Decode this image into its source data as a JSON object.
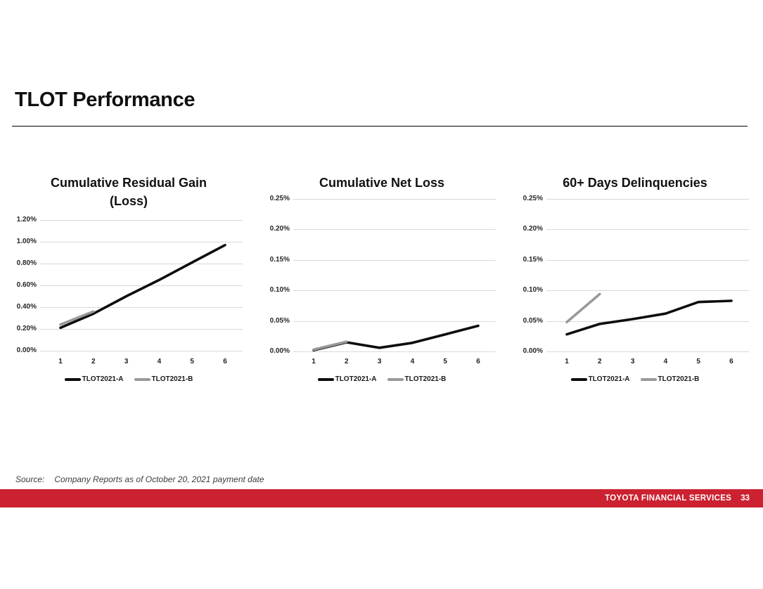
{
  "slide": {
    "title": "TLOT Performance",
    "source": {
      "label": "Source:",
      "text": "Company Reports as of October 20, 2021 payment date"
    },
    "footer": {
      "brand": "TOYOTA FINANCIAL SERVICES",
      "page_number": "33",
      "bar_color": "#cb2130",
      "text_color": "#ffffff"
    },
    "colors": {
      "gridline": "#d9d9d9",
      "series_a": "#0d0d0d",
      "series_b": "#999999"
    }
  },
  "chart_data": [
    {
      "type": "line",
      "title": "Cumulative Residual Gain\n(Loss)",
      "xlabel": "",
      "ylabel": "",
      "categories": [
        "1",
        "2",
        "3",
        "4",
        "5",
        "6"
      ],
      "series": [
        {
          "name": "TLOT2021-A",
          "color": "#0d0d0d",
          "values": [
            0.21,
            0.34,
            0.5,
            0.65,
            0.81,
            0.97
          ]
        },
        {
          "name": "TLOT2021-B",
          "color": "#999999",
          "values": [
            0.24,
            0.36
          ]
        }
      ],
      "ylim": [
        0,
        1.2
      ],
      "yticks": [
        "1.20%",
        "1.00%",
        "0.80%",
        "0.60%",
        "0.40%",
        "0.20%",
        "0.00%"
      ],
      "ytick_values": [
        1.2,
        1.0,
        0.8,
        0.6,
        0.4,
        0.2,
        0
      ],
      "unit": "percent",
      "grid": true,
      "legend_position": "bottom"
    },
    {
      "type": "line",
      "title": "Cumulative Net Loss",
      "xlabel": "",
      "ylabel": "",
      "categories": [
        "1",
        "2",
        "3",
        "4",
        "5",
        "6"
      ],
      "series": [
        {
          "name": "TLOT2021-A",
          "color": "#0d0d0d",
          "values": [
            0.002,
            0.015,
            0.006,
            0.014,
            0.028,
            0.042
          ]
        },
        {
          "name": "TLOT2021-B",
          "color": "#999999",
          "values": [
            0.003,
            0.016
          ]
        }
      ],
      "ylim": [
        0,
        0.25
      ],
      "yticks": [
        "0.25%",
        "0.20%",
        "0.15%",
        "0.10%",
        "0.05%",
        "0.00%"
      ],
      "ytick_values": [
        0.25,
        0.2,
        0.15,
        0.1,
        0.05,
        0
      ],
      "unit": "percent",
      "grid": true,
      "legend_position": "bottom"
    },
    {
      "type": "line",
      "title": "60+ Days Delinquencies",
      "xlabel": "",
      "ylabel": "",
      "categories": [
        "1",
        "2",
        "3",
        "4",
        "5",
        "6"
      ],
      "series": [
        {
          "name": "TLOT2021-A",
          "color": "#0d0d0d",
          "values": [
            0.028,
            0.045,
            0.053,
            0.062,
            0.081,
            0.083
          ]
        },
        {
          "name": "TLOT2021-B",
          "color": "#999999",
          "values": [
            0.048,
            0.094
          ]
        }
      ],
      "ylim": [
        0,
        0.25
      ],
      "yticks": [
        "0.25%",
        "0.20%",
        "0.15%",
        "0.10%",
        "0.05%",
        "0.00%"
      ],
      "ytick_values": [
        0.25,
        0.2,
        0.15,
        0.1,
        0.05,
        0
      ],
      "unit": "percent",
      "grid": true,
      "legend_position": "bottom"
    }
  ]
}
